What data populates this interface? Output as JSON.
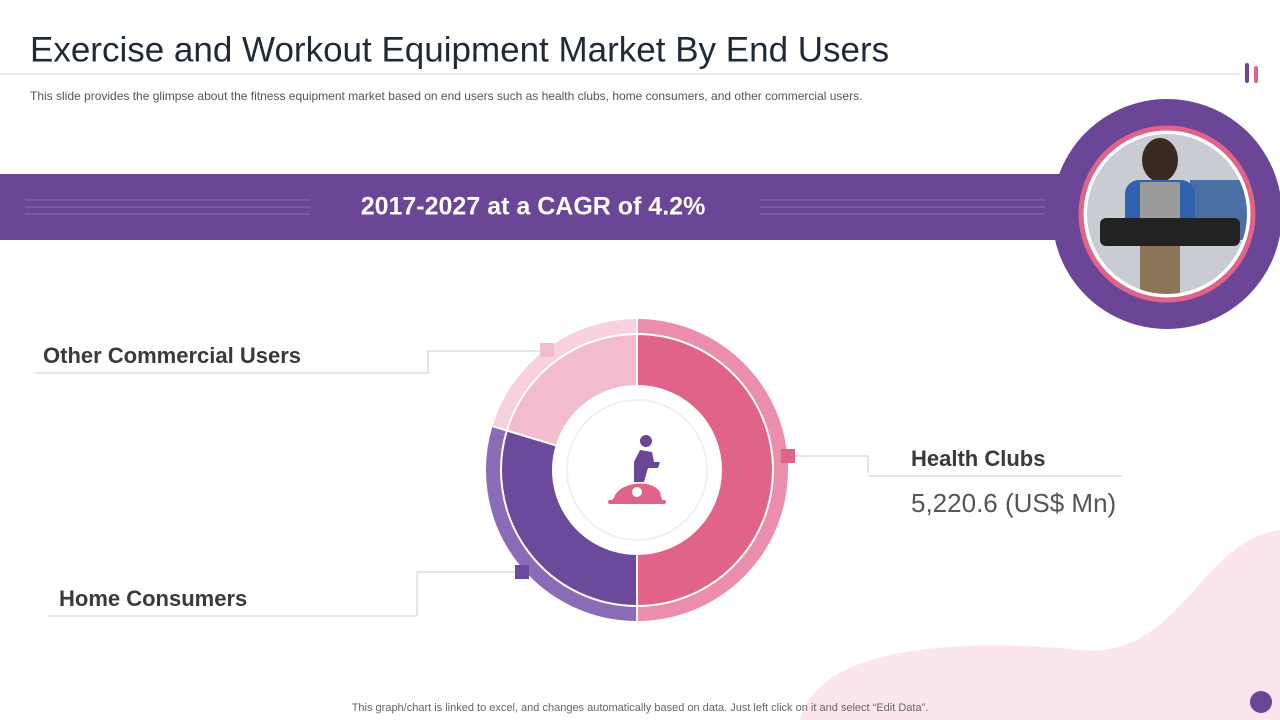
{
  "title": "Exercise and Workout Equipment Market By End Users",
  "subtitle": "This slide provides  the glimpse about the fitness equipment market based on end users such as health clubs, home consumers, and other commercial users.",
  "banner": "2017-2027 at a CAGR of 4.2%",
  "footnote": "This graph/chart is linked to excel,  and changes automatically based on data. Just left click on it and select “Edit Data”.",
  "chart_data": {
    "type": "donut",
    "categories": [
      "Health Clubs",
      "Home Consumers",
      "Other Commercial Users"
    ],
    "values": [
      5220.6,
      3101,
      2120
    ],
    "value_labels": [
      "5,220.6 (US$ Mn)",
      null,
      null
    ],
    "colors": [
      "#e0648a",
      "#6b4a9b",
      "#f2bccd"
    ],
    "ring_colors": [
      "#ea8eab",
      "#8a6cb6",
      "#f7d1dd"
    ]
  }
}
